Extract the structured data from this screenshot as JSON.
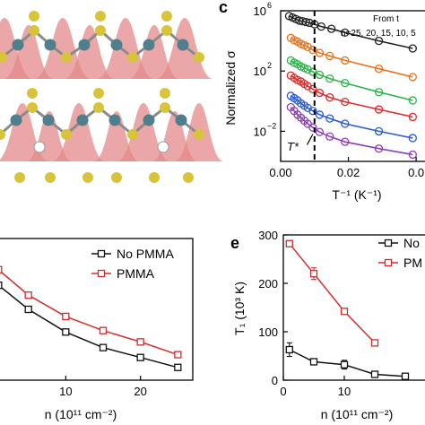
{
  "panels": {
    "c": {
      "letter": "c"
    },
    "d": {
      "letter": ""
    },
    "e": {
      "letter": "e"
    }
  },
  "chart_data": [
    {
      "panel": "c",
      "type": "scatter",
      "title": "",
      "xlabel": "T⁻¹ (K⁻¹)",
      "ylabel": "Normalized σ",
      "xlim": [
        0,
        0.045
      ],
      "ylim_log10": [
        -4,
        6
      ],
      "y_scale": "log",
      "x_ticks": [
        0.0,
        0.02,
        0.04
      ],
      "x_tick_labels": [
        "0.00",
        "0.02",
        "0.0"
      ],
      "y_ticks_log10": [
        6,
        2,
        -2
      ],
      "y_tick_labels": [
        {
          "base": "10",
          "exp": "6"
        },
        {
          "base": "10",
          "exp": "2"
        },
        {
          "base": "10",
          "exp": "−2"
        }
      ],
      "legend_text": "From t",
      "n_label": "n=25, 20, 15, 10, 5",
      "marker_annotation": "T*",
      "vline_x": 0.01,
      "grid": false,
      "series": [
        {
          "color": "#222222",
          "x": [
            0.0025,
            0.0035,
            0.0045,
            0.0055,
            0.0065,
            0.0075,
            0.0085,
            0.01,
            0.012,
            0.015,
            0.019,
            0.029,
            0.039
          ],
          "y": [
            5.65,
            5.55,
            5.45,
            5.35,
            5.3,
            5.25,
            5.2,
            5.1,
            4.95,
            4.8,
            4.55,
            4.0,
            3.5
          ]
        },
        {
          "color": "#e8731c",
          "x": [
            0.003,
            0.004,
            0.005,
            0.006,
            0.007,
            0.008,
            0.0095,
            0.0115,
            0.0145,
            0.019,
            0.029,
            0.039
          ],
          "y": [
            4.2,
            4.05,
            3.95,
            3.8,
            3.7,
            3.6,
            3.4,
            3.2,
            3.0,
            2.7,
            2.15,
            1.6
          ]
        },
        {
          "color": "#2fb34a",
          "x": [
            0.003,
            0.004,
            0.005,
            0.006,
            0.007,
            0.008,
            0.0095,
            0.0115,
            0.0145,
            0.019,
            0.029,
            0.039
          ],
          "y": [
            2.7,
            2.55,
            2.45,
            2.3,
            2.2,
            2.1,
            1.95,
            1.75,
            1.5,
            1.2,
            0.6,
            0.05
          ]
        },
        {
          "color": "#e02a2a",
          "x": [
            0.003,
            0.004,
            0.005,
            0.006,
            0.007,
            0.008,
            0.0095,
            0.0115,
            0.0145,
            0.019,
            0.029,
            0.039
          ],
          "y": [
            1.7,
            1.55,
            1.4,
            1.3,
            1.15,
            1.0,
            0.8,
            0.55,
            0.25,
            -0.05,
            -0.55,
            -1.05
          ]
        },
        {
          "color": "#2a5bd4",
          "x": [
            0.003,
            0.004,
            0.005,
            0.006,
            0.007,
            0.008,
            0.0095,
            0.0115,
            0.0145,
            0.019,
            0.029,
            0.039
          ],
          "y": [
            0.35,
            0.2,
            0.05,
            -0.15,
            -0.3,
            -0.45,
            -0.65,
            -0.9,
            -1.15,
            -1.5,
            -2.0,
            -2.45
          ]
        },
        {
          "color": "#8e3fb6",
          "x": [
            0.003,
            0.004,
            0.005,
            0.006,
            0.007,
            0.008,
            0.0095,
            0.0115,
            0.0145,
            0.019,
            0.029,
            0.039
          ],
          "y": [
            -0.4,
            -0.65,
            -0.9,
            -1.1,
            -1.3,
            -1.5,
            -1.75,
            -2.05,
            -2.35,
            -2.7,
            -3.15,
            -3.55
          ]
        }
      ]
    },
    {
      "panel": "d",
      "type": "line",
      "title": "",
      "xlabel": "n (10¹¹ cm⁻²)",
      "ylabel": "",
      "xlim": [
        0,
        27
      ],
      "ylim": [
        0,
        100
      ],
      "x_ticks": [
        10,
        20
      ],
      "grid": false,
      "legend_position": "top-right",
      "series": [
        {
          "name": "No PMMA",
          "color": "#111111",
          "x": [
            1,
            5,
            10,
            15,
            20,
            25
          ],
          "y": [
            67,
            50,
            34,
            23,
            16,
            9
          ]
        },
        {
          "name": "PMMA",
          "color": "#d42b2b",
          "x": [
            1,
            5,
            10,
            15,
            20,
            25
          ],
          "y": [
            78,
            60,
            45,
            35,
            27,
            18
          ]
        }
      ]
    },
    {
      "panel": "e",
      "type": "line",
      "title": "",
      "xlabel": "n (10¹¹ cm⁻²)",
      "ylabel": "T₁ (10³ K)",
      "xlim": [
        0,
        25
      ],
      "ylim": [
        0,
        300
      ],
      "x_ticks": [
        0,
        10
      ],
      "y_ticks": [
        0,
        100,
        200,
        300
      ],
      "grid": false,
      "legend_position": "top-right",
      "series": [
        {
          "name": "No",
          "color": "#111111",
          "x": [
            1,
            5,
            10,
            15,
            20
          ],
          "y": [
            63,
            38,
            32,
            12,
            8
          ],
          "yerr": [
            14,
            5,
            9,
            4,
            3
          ]
        },
        {
          "name": "PM",
          "color": "#d42b2b",
          "x": [
            1,
            5,
            10,
            15
          ],
          "y": [
            282,
            220,
            142,
            77
          ],
          "yerr": [
            4,
            12,
            4,
            4
          ]
        }
      ]
    }
  ]
}
